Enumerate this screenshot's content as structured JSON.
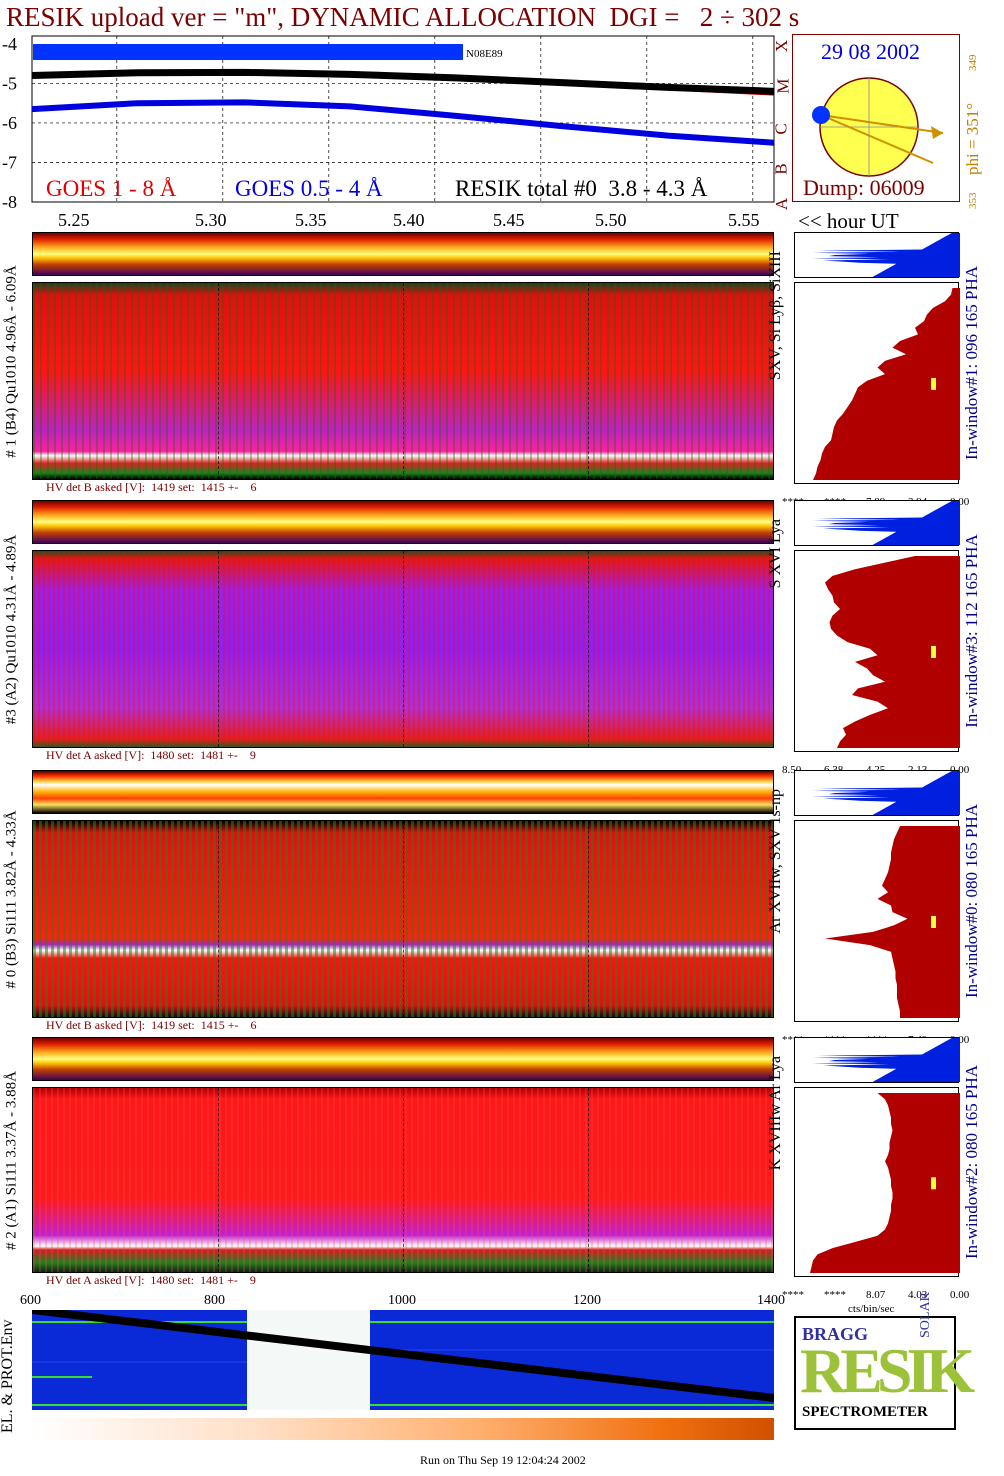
{
  "header": {
    "title": "RESIK upload ver = \"m\", DYNAMIC ALLOCATION  DGI =   2 ÷ 302 s",
    "date": "29 08 2002",
    "dump": "Dump: 06009",
    "phi": "phi = 351°",
    "phi_small": "349",
    "phi_small2": "353",
    "noaa_label": "N08E89",
    "goes_classes": [
      "A",
      "B",
      "C",
      "M",
      "X"
    ]
  },
  "colors": {
    "title": "#7a0000",
    "goes_long": "#e00000",
    "goes_short": "#0000e0",
    "resik_total": "#000000",
    "histogram_red": "#b00000",
    "histogram_blue": "#0020e0",
    "sun": "#ffff50",
    "phi_text": "#c08000",
    "label_blue": "#000090"
  },
  "chart_data": [
    {
      "type": "line",
      "title": "",
      "legend": [
        "GOES 1 - 8 Å",
        "GOES 0.5 - 4 Å",
        "RESIK total #0  3.8 - 4.3 Å"
      ],
      "xlabel": "<< hour UT",
      "ylabel": "",
      "x_ticks": [
        "5.25",
        "5.30",
        "5.35",
        "5.40",
        "5.45",
        "5.50",
        "5.55"
      ],
      "y_ticks": [
        "-4",
        "-5",
        "-6",
        "-7",
        "-8"
      ],
      "xlim": [
        5.21,
        5.56
      ],
      "ylim": [
        -8,
        -3.8
      ],
      "series": [
        {
          "name": "GOES 1 - 8 Å",
          "x": [
            5.21,
            5.26,
            5.31,
            5.36,
            5.41,
            5.46,
            5.51,
            5.56
          ],
          "values": [
            -4.83,
            -4.74,
            -4.7,
            -4.73,
            -4.84,
            -5.0,
            -5.14,
            -5.27
          ]
        },
        {
          "name": "GOES 0.5 - 4 Å",
          "x": [
            5.21,
            5.26,
            5.31,
            5.36,
            5.41,
            5.46,
            5.51,
            5.56
          ],
          "values": [
            -5.65,
            -5.5,
            -5.48,
            -5.58,
            -5.82,
            -6.08,
            -6.32,
            -6.5
          ]
        },
        {
          "name": "RESIK total #0  3.8 - 4.3 Å",
          "x": [
            5.21,
            5.26,
            5.31,
            5.36,
            5.41,
            5.46,
            5.51,
            5.56
          ],
          "values": [
            -4.8,
            -4.73,
            -4.72,
            -4.77,
            -4.86,
            -4.98,
            -5.1,
            -5.2
          ]
        }
      ]
    },
    {
      "type": "line",
      "title": "",
      "xlabel": "",
      "ylabel": "EL. & PROT.Env",
      "x_ticks": [
        "600",
        "800",
        "1000",
        "1200",
        "1400"
      ],
      "xlim": [
        600,
        1400
      ],
      "series": [
        {
          "name": "",
          "x": [
            600,
            1400
          ],
          "values": [
            1.0,
            0.12
          ]
        }
      ]
    }
  ],
  "panels": [
    {
      "side_label": "# 1 (B4) Qu1010 4.96Å - 6.09Å",
      "lines_label": "SXV, Si Lyβ, SiXIII",
      "window_label": "In-window#1:  096 165 PHA",
      "hv_text": "HV det B asked [V]:  1419 set:  1415 +-    6",
      "axis_labels": [
        "****",
        "****",
        "7.89",
        "3.94",
        "0.00"
      ],
      "strip": "strip-hot",
      "map": "map-red",
      "hist_profile": [
        0.05,
        0.06,
        0.1,
        0.18,
        0.22,
        0.24,
        0.3,
        0.28,
        0.4,
        0.45,
        0.36,
        0.5,
        0.55,
        0.5,
        0.62,
        0.68,
        0.7,
        0.72,
        0.75,
        0.78,
        0.82,
        0.84,
        0.85,
        0.86,
        0.9,
        0.92,
        0.93,
        0.95,
        0.96,
        0.98
      ]
    },
    {
      "side_label": "#3 (A2) Qu1010  4.31Å - 4.89Å",
      "lines_label": "S XVI Lya",
      "window_label": "In-window#3:  112 165 PHA",
      "hv_text": "HV det A asked [V]:  1480 set:  1481 +-    9",
      "axis_labels": [
        "8.50",
        "6.38",
        "4.25",
        "2.13",
        "0.00"
      ],
      "strip": "strip-hot",
      "map": "map-purple",
      "hist_profile": [
        0.3,
        0.5,
        0.7,
        0.85,
        0.9,
        0.88,
        0.85,
        0.84,
        0.8,
        0.85,
        0.87,
        0.86,
        0.82,
        0.75,
        0.6,
        0.55,
        0.7,
        0.62,
        0.58,
        0.5,
        0.68,
        0.72,
        0.55,
        0.48,
        0.6,
        0.7,
        0.78,
        0.76,
        0.8,
        0.82
      ]
    },
    {
      "side_label": "# 0 (B3) Si111  3.82Å - 4.33Å",
      "lines_label": "Ar XVIIw,  SXV 1s-np",
      "window_label": "In-window#0:  080 165 PHA",
      "hv_text": "HV det B asked [V]:  1419 set:  1415 +-    6",
      "axis_labels": [
        "****",
        "****",
        "****",
        "7.49",
        "0.00"
      ],
      "strip": "strip-hot2",
      "map": "map-redgreen",
      "hist_profile": [
        0.4,
        0.42,
        0.44,
        0.45,
        0.46,
        0.46,
        0.47,
        0.48,
        0.5,
        0.52,
        0.48,
        0.55,
        0.46,
        0.45,
        0.35,
        0.44,
        0.58,
        0.9,
        0.6,
        0.46,
        0.45,
        0.44,
        0.43,
        0.43,
        0.42,
        0.42,
        0.42,
        0.41,
        0.4,
        0.4
      ]
    },
    {
      "side_label": "# 2 (A1) Si111  3.37Å - 3.88Å",
      "lines_label": "K XVIIIw  Ar Lya",
      "window_label": "In-window#2:  080 165 PHA",
      "hv_text": "HV det A asked [V]:  1480 set:  1481 +-    9",
      "axis_labels": [
        "****",
        "****",
        "8.07",
        "4.03",
        "0.00"
      ],
      "strip": "strip-hot",
      "map": "map-red2",
      "hist_profile": [
        0.55,
        0.5,
        0.48,
        0.47,
        0.46,
        0.46,
        0.45,
        0.46,
        0.47,
        0.47,
        0.48,
        0.5,
        0.48,
        0.47,
        0.46,
        0.46,
        0.45,
        0.45,
        0.46,
        0.46,
        0.47,
        0.48,
        0.5,
        0.55,
        0.7,
        0.85,
        0.95,
        0.98,
        0.99,
        1.0
      ]
    }
  ],
  "bottom": {
    "x_ticks": [
      "600",
      "800",
      "1000",
      "1200",
      "1400"
    ],
    "hist_xlabel": "cts/bin/sec",
    "footer": "Run on Thu Sep 19 12:04:24 2002"
  },
  "logo": {
    "letters": "RESIK",
    "bragg": "BRAGG",
    "solar": "SOLAR",
    "spectrometer": "SPECTROMETER"
  }
}
